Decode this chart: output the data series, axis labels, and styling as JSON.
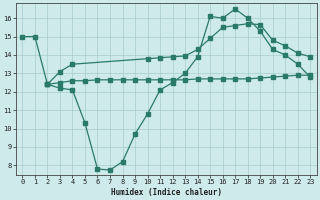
{
  "line1_x": [
    0,
    1,
    2,
    3,
    4,
    5,
    6,
    7,
    8,
    9,
    10,
    11,
    12,
    13,
    14,
    15,
    16,
    17,
    18,
    19,
    20,
    21,
    22,
    23
  ],
  "line1_y": [
    15,
    15,
    12.4,
    12.2,
    12.1,
    10.3,
    7.8,
    7.75,
    8.2,
    9.7,
    10.8,
    12.1,
    12.5,
    13.0,
    13.9,
    16.1,
    16.0,
    16.5,
    16.0,
    15.3,
    14.3,
    14.0,
    13.5,
    12.8
  ],
  "line2_x": [
    2,
    3,
    4,
    5,
    6,
    7,
    8,
    9,
    10,
    11,
    12,
    13,
    14,
    15,
    16,
    17,
    18,
    19,
    20,
    21,
    22,
    23
  ],
  "line2_y": [
    12.4,
    12.5,
    12.6,
    12.6,
    12.65,
    12.65,
    12.65,
    12.65,
    12.65,
    12.65,
    12.65,
    12.65,
    12.7,
    12.7,
    12.7,
    12.7,
    12.7,
    12.75,
    12.8,
    12.85,
    12.9,
    12.9
  ],
  "line3_x": [
    2,
    3,
    4,
    10,
    11,
    12,
    13,
    14,
    15,
    16,
    17,
    18,
    19,
    20,
    21,
    22,
    23
  ],
  "line3_y": [
    12.4,
    13.1,
    13.5,
    13.8,
    13.85,
    13.9,
    13.95,
    14.3,
    14.9,
    15.5,
    15.6,
    15.7,
    15.65,
    14.8,
    14.5,
    14.1,
    13.9
  ],
  "color": "#2a7a6a",
  "bg_color": "#ceeaea",
  "grid_color": "#aacccc",
  "xlabel": "Humidex (Indice chaleur)",
  "ylim": [
    7.5,
    16.8
  ],
  "xlim": [
    -0.5,
    23.5
  ],
  "yticks": [
    8,
    9,
    10,
    11,
    12,
    13,
    14,
    15,
    16
  ],
  "xticks": [
    0,
    1,
    2,
    3,
    4,
    5,
    6,
    7,
    8,
    9,
    10,
    11,
    12,
    13,
    14,
    15,
    16,
    17,
    18,
    19,
    20,
    21,
    22,
    23
  ]
}
